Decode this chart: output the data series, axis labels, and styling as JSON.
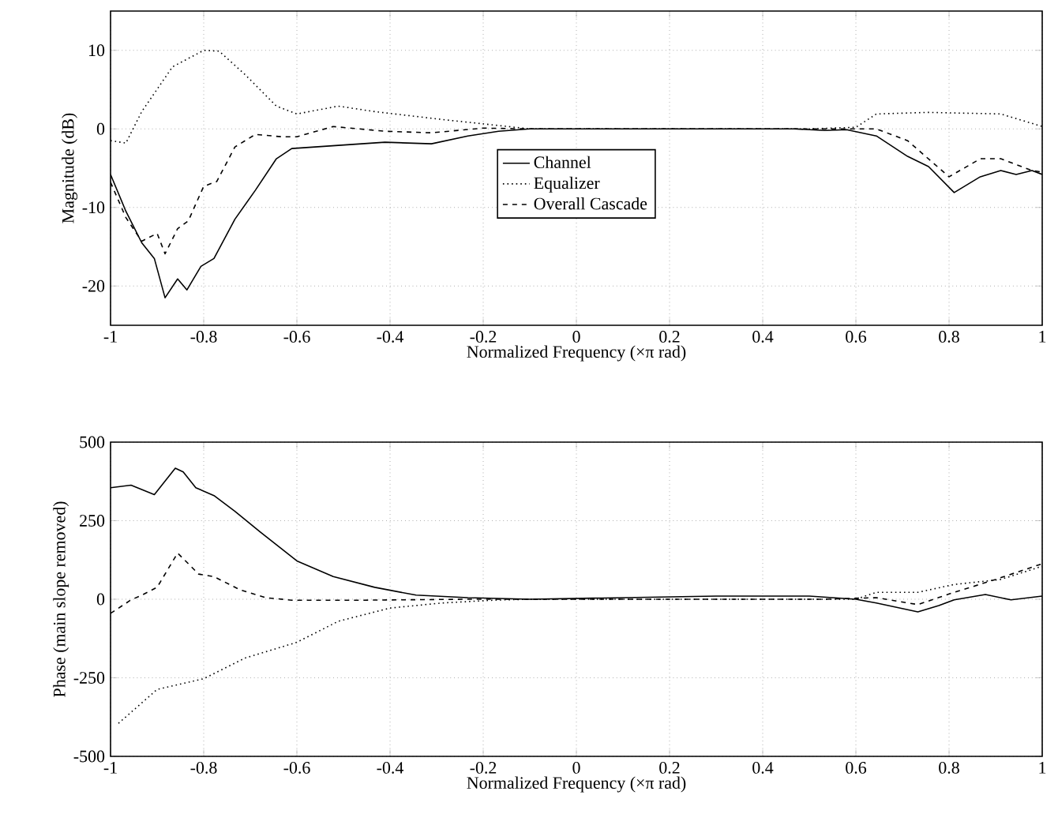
{
  "chart_data": [
    {
      "type": "line",
      "xlabel": "Normalized Frequency  (×π rad)",
      "ylabel": "Magnitude (dB)",
      "xlim": [
        -1,
        1
      ],
      "ylim": [
        -25,
        15
      ],
      "xticks": [
        -1,
        -0.8,
        -0.6,
        -0.4,
        -0.2,
        0,
        0.2,
        0.4,
        0.6,
        0.8,
        1
      ],
      "yticks": [
        -20,
        -10,
        0,
        10
      ],
      "grid": true,
      "legend": "center",
      "series": [
        {
          "name": "Channel",
          "color": "#000000",
          "line_style": "solid",
          "x": [
            -1,
            -0.967,
            -0.933,
            -0.906,
            -0.883,
            -0.856,
            -0.836,
            -0.806,
            -0.778,
            -0.733,
            -0.689,
            -0.644,
            -0.611,
            -0.511,
            -0.411,
            -0.311,
            -0.233,
            -0.167,
            -0.1,
            0.2,
            0.467,
            0.533,
            0.58,
            0.644,
            0.711,
            0.756,
            0.811,
            0.867,
            0.911,
            0.944,
            0.978,
            1
          ],
          "values": [
            -5.8,
            -10.5,
            -14.5,
            -16.5,
            -21.5,
            -19.1,
            -20.5,
            -17.5,
            -16.5,
            -11.5,
            -7.8,
            -3.8,
            -2.5,
            -2.1,
            -1.7,
            -1.9,
            -0.9,
            -0.3,
            0,
            0,
            0,
            -0.2,
            -0.1,
            -0.9,
            -3.5,
            -4.8,
            -8.1,
            -6.1,
            -5.3,
            -5.8,
            -5.3,
            -5.8
          ]
        },
        {
          "name": "Equalizer",
          "color": "#000000",
          "line_style": "dotted",
          "x": [
            -1,
            -0.967,
            -0.933,
            -0.867,
            -0.8,
            -0.767,
            -0.711,
            -0.644,
            -0.6,
            -0.511,
            -0.433,
            -0.289,
            -0.178,
            -0.1,
            0.2,
            0.5,
            0.6,
            0.644,
            0.756,
            0.911,
            0.989,
            1
          ],
          "values": [
            -1.5,
            -1.8,
            2.2,
            7.9,
            10,
            9.9,
            6.9,
            2.9,
            1.9,
            2.9,
            2.2,
            1.2,
            0.5,
            0,
            0,
            0,
            0.2,
            1.9,
            2.1,
            1.9,
            0.5,
            0.3
          ]
        },
        {
          "name": "Overall Cascade",
          "color": "#000000",
          "line_style": "dashed",
          "x": [
            -1,
            -0.967,
            -0.933,
            -0.9,
            -0.883,
            -0.856,
            -0.833,
            -0.8,
            -0.772,
            -0.733,
            -0.689,
            -0.633,
            -0.6,
            -0.522,
            -0.411,
            -0.311,
            -0.2,
            -0.1,
            0.2,
            0.533,
            0.644,
            0.711,
            0.8,
            0.867,
            0.911,
            0.978,
            1
          ],
          "values": [
            -6.8,
            -11.3,
            -14.3,
            -13.3,
            -15.9,
            -12.7,
            -11.7,
            -7.3,
            -6.7,
            -2.3,
            -0.7,
            -1,
            -1,
            0.3,
            -0.3,
            -0.5,
            0.1,
            0,
            0,
            0,
            0,
            -1.5,
            -6.1,
            -3.8,
            -3.8,
            -5.3,
            -5.5
          ]
        }
      ]
    },
    {
      "type": "line",
      "xlabel": "Normalized Frequency  (×π rad)",
      "ylabel": "Phase (main slope removed)",
      "xlim": [
        -1,
        1
      ],
      "ylim": [
        -500,
        500
      ],
      "xticks": [
        -1,
        -0.8,
        -0.6,
        -0.4,
        -0.2,
        0,
        0.2,
        0.4,
        0.6,
        0.8,
        1
      ],
      "yticks": [
        -500,
        -250,
        0,
        250,
        500
      ],
      "grid": true,
      "series": [
        {
          "color": "#000000",
          "line_style": "solid",
          "x": [
            -1,
            -0.956,
            -0.906,
            -0.861,
            -0.844,
            -0.817,
            -0.778,
            -0.733,
            -0.678,
            -0.6,
            -0.522,
            -0.433,
            -0.344,
            -0.233,
            -0.1,
            0.3,
            0.5,
            0.6,
            0.644,
            0.733,
            0.778,
            0.811,
            0.878,
            0.933,
            1
          ],
          "values": [
            355,
            363,
            333,
            417,
            405,
            355,
            330,
            280,
            213,
            122,
            72,
            38,
            13,
            5,
            0,
            10,
            10,
            0,
            -12,
            -40,
            -20,
            -2,
            15,
            -2,
            10
          ]
        },
        {
          "color": "#000000",
          "line_style": "dotted",
          "x": [
            -0.983,
            -0.9,
            -0.8,
            -0.711,
            -0.6,
            -0.511,
            -0.4,
            -0.289,
            -0.178,
            -0.1,
            0.6,
            0.644,
            0.733,
            0.811,
            0.911,
            1
          ],
          "values": [
            -395,
            -287,
            -253,
            -187,
            -137,
            -70,
            -28,
            -12,
            -3,
            0,
            0,
            22,
            22,
            47,
            63,
            105
          ]
        },
        {
          "color": "#000000",
          "line_style": "dashed",
          "x": [
            -1,
            -0.956,
            -0.933,
            -0.9,
            -0.856,
            -0.833,
            -0.811,
            -0.778,
            -0.722,
            -0.667,
            -0.611,
            -0.456,
            -0.233,
            -0.1,
            0.533,
            0.644,
            0.733,
            0.811,
            0.9,
            1
          ],
          "values": [
            -45,
            -2,
            13,
            38,
            147,
            113,
            80,
            72,
            30,
            5,
            -3,
            -3,
            0,
            0,
            0,
            5,
            -17,
            22,
            63,
            113
          ]
        }
      ]
    }
  ]
}
